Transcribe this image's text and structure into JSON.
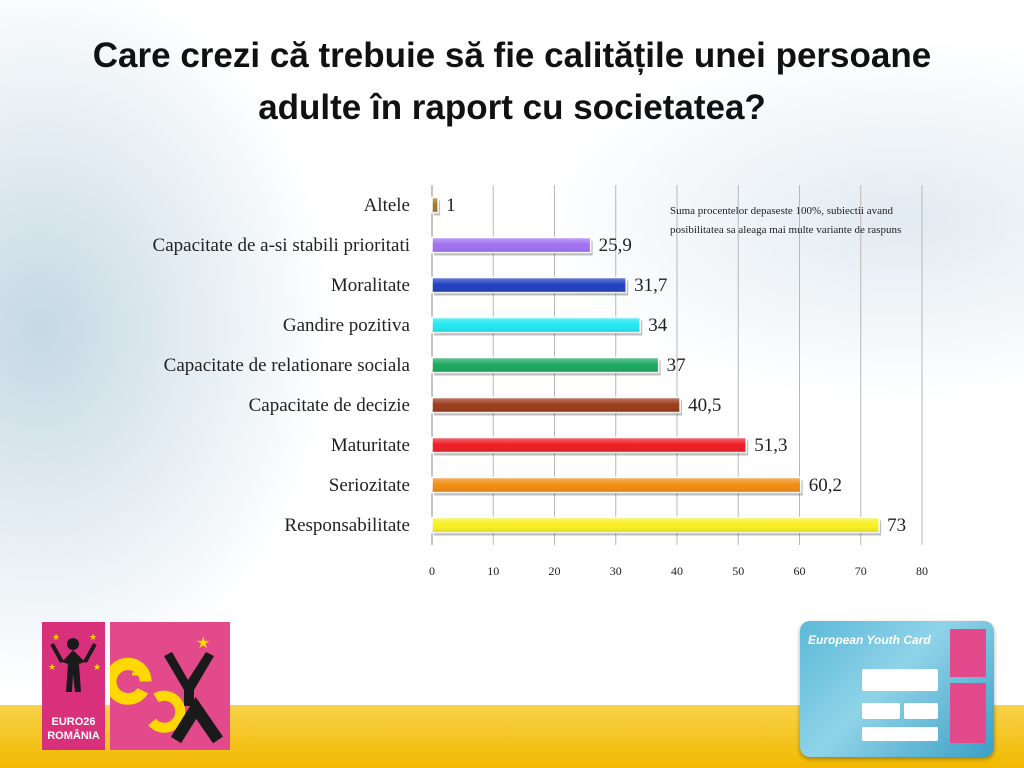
{
  "slide": {
    "title": "Care crezi că trebuie să fie calitățile unei persoane adulte în raport cu societatea?",
    "note": "Suma procentelor depaseste 100%, subiectii avand posibilitatea sa aleaga mai multe variante de raspuns"
  },
  "chart_data": {
    "type": "bar",
    "orientation": "horizontal",
    "categories": [
      "Altele",
      "Capacitate de a-si stabili prioritati",
      "Moralitate",
      "Gandire pozitiva",
      "Capacitate de relationare sociala",
      "Capacitate de decizie",
      "Maturitate",
      "Seriozitate",
      "Responsabilitate"
    ],
    "values": [
      1,
      25.9,
      31.7,
      34,
      37,
      40.5,
      51.3,
      60.2,
      73
    ],
    "data_labels": [
      "1",
      "25,9",
      "31,7",
      "34",
      "37",
      "40,5",
      "51,3",
      "60,2",
      "73"
    ],
    "colors": [
      "#a0752a",
      "#a070f0",
      "#1f3fbf",
      "#20e8f0",
      "#1aa860",
      "#9a3a18",
      "#ee1c24",
      "#f08c10",
      "#f8f020"
    ],
    "xlim": [
      0,
      80
    ],
    "xticks": [
      0,
      10,
      20,
      30,
      40,
      50,
      60,
      70,
      80
    ],
    "grid": true,
    "legend": "none"
  },
  "footer": {
    "euro_logo_line1": "EURO26",
    "euro_logo_line2": "ROMÂNIA",
    "card_title": "European Youth Card"
  }
}
